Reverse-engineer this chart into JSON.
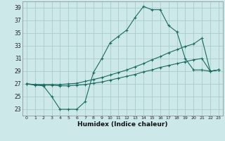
{
  "xlabel": "Humidex (Indice chaleur)",
  "bg_color": "#cce8e8",
  "grid_color": "#aacccc",
  "line_color": "#1a6b60",
  "xlim": [
    -0.5,
    23.5
  ],
  "ylim": [
    22.0,
    40.0
  ],
  "yticks": [
    23,
    25,
    27,
    29,
    31,
    33,
    35,
    37,
    39
  ],
  "xticks": [
    0,
    1,
    2,
    3,
    4,
    5,
    6,
    7,
    8,
    9,
    10,
    11,
    12,
    13,
    14,
    15,
    16,
    17,
    18,
    19,
    20,
    21,
    22,
    23
  ],
  "line1_x": [
    0,
    1,
    2,
    3,
    4,
    5,
    6,
    7,
    8,
    9,
    10,
    11,
    12,
    13,
    14,
    15,
    16,
    17,
    18,
    19,
    20,
    21,
    22,
    23
  ],
  "line1_y": [
    27,
    26.8,
    26.7,
    25,
    23,
    23,
    23,
    24.2,
    28.8,
    31,
    33.5,
    34.5,
    35.5,
    37.5,
    39.2,
    38.7,
    38.7,
    36.2,
    35.2,
    31,
    29.2,
    29.2,
    29,
    29.2
  ],
  "line2_x": [
    0,
    1,
    2,
    3,
    4,
    5,
    6,
    7,
    8,
    9,
    10,
    11,
    12,
    13,
    14,
    15,
    16,
    17,
    18,
    19,
    20,
    21,
    22,
    23
  ],
  "line2_y": [
    27,
    26.9,
    26.9,
    26.9,
    26.9,
    27.0,
    27.1,
    27.4,
    27.7,
    28.0,
    28.4,
    28.8,
    29.2,
    29.7,
    30.2,
    30.8,
    31.3,
    31.9,
    32.4,
    32.9,
    33.3,
    34.2,
    29.0,
    29.2
  ],
  "line3_x": [
    0,
    1,
    2,
    3,
    4,
    5,
    6,
    7,
    8,
    9,
    10,
    11,
    12,
    13,
    14,
    15,
    16,
    17,
    18,
    19,
    20,
    21,
    22,
    23
  ],
  "line3_y": [
    27.0,
    26.9,
    26.8,
    26.8,
    26.7,
    26.7,
    26.8,
    26.9,
    27.1,
    27.3,
    27.6,
    27.9,
    28.2,
    28.5,
    28.9,
    29.2,
    29.6,
    29.9,
    30.2,
    30.5,
    30.8,
    31.0,
    29.0,
    29.2
  ]
}
